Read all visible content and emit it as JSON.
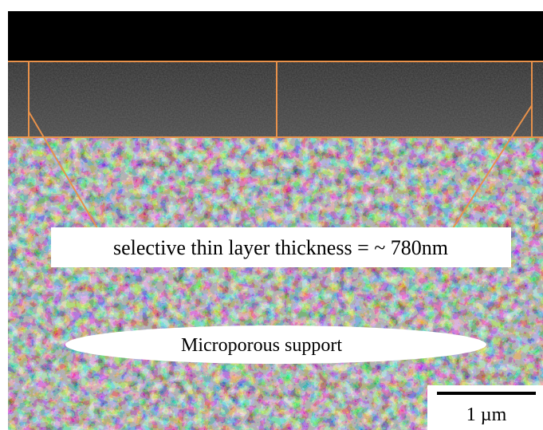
{
  "annotations": {
    "layer_label": "selective thin layer thickness = ~ 780nm",
    "support_label": "Microporous support",
    "scale_bar_label": "1 µm"
  }
}
